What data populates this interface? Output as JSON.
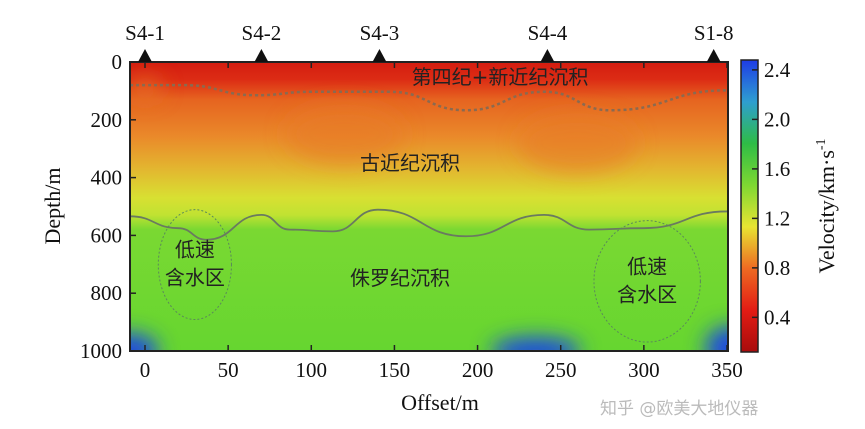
{
  "chart_data": {
    "type": "heatmap",
    "xlabel": "Offset/m",
    "ylabel": "Depth/m",
    "xlim": [
      -10,
      350
    ],
    "ylim": [
      1000,
      0
    ],
    "xticks": [
      0,
      50,
      100,
      150,
      200,
      250,
      300,
      350
    ],
    "yticks": [
      0,
      200,
      400,
      600,
      800,
      1000
    ],
    "colorbar": {
      "label": "Velocity/km·s",
      "label_sup": "-1",
      "ticks": [
        0.4,
        0.8,
        1.2,
        1.6,
        2.0,
        2.4
      ],
      "tick_labels": [
        "0.4",
        "0.8",
        "1.2",
        "1.6",
        "2.0",
        "2.4"
      ],
      "range": [
        0.12,
        2.48
      ],
      "colormap": [
        "#a80c0c",
        "#e21c14",
        "#ee6a22",
        "#e8e432",
        "#7ed832",
        "#2ebc46",
        "#2e9ed0",
        "#1e3ce6"
      ]
    },
    "stations": [
      {
        "label": "S4-1",
        "offset": 0
      },
      {
        "label": "S4-2",
        "offset": 70
      },
      {
        "label": "S4-3",
        "offset": 141
      },
      {
        "label": "S4-4",
        "offset": 242
      },
      {
        "label": "S1-8",
        "offset": 342
      }
    ],
    "velocity_profile": [
      {
        "depth": 0,
        "velocity": 0.3
      },
      {
        "depth": 120,
        "velocity": 0.75
      },
      {
        "depth": 250,
        "velocity": 0.9
      },
      {
        "depth": 400,
        "velocity": 1.25
      },
      {
        "depth": 500,
        "velocity": 1.35
      },
      {
        "depth": 580,
        "velocity": 1.7
      },
      {
        "depth": 1000,
        "velocity": 1.75
      }
    ],
    "boundaries": [
      {
        "style": "dashed",
        "points": [
          [
            -9,
            80
          ],
          [
            23,
            80
          ],
          [
            67,
            115
          ],
          [
            100,
            103
          ],
          [
            147,
            103
          ],
          [
            193,
            167
          ],
          [
            240,
            103
          ],
          [
            280,
            167
          ],
          [
            350,
            98
          ]
        ]
      },
      {
        "style": "solid",
        "points": [
          [
            -9,
            534
          ],
          [
            20,
            575
          ],
          [
            37,
            615
          ],
          [
            70,
            529
          ],
          [
            87,
            580
          ],
          [
            113,
            586
          ],
          [
            140,
            511
          ],
          [
            193,
            603
          ],
          [
            240,
            529
          ],
          [
            267,
            580
          ],
          [
            300,
            575
          ],
          [
            350,
            517
          ]
        ]
      }
    ],
    "zones": [
      {
        "label": "第四纪+新近纪沉积"
      },
      {
        "label": "古近纪沉积"
      },
      {
        "label": "侏罗纪沉积"
      },
      {
        "label_lines": [
          "低速",
          "含水区"
        ],
        "center": [
          30,
          701
        ],
        "radius": [
          22,
          190
        ]
      },
      {
        "label_lines": [
          "低速",
          "含水区"
        ],
        "center": [
          302,
          759
        ],
        "radius": [
          32,
          210
        ]
      }
    ]
  },
  "watermark": "知乎 @欧美大地仪器"
}
